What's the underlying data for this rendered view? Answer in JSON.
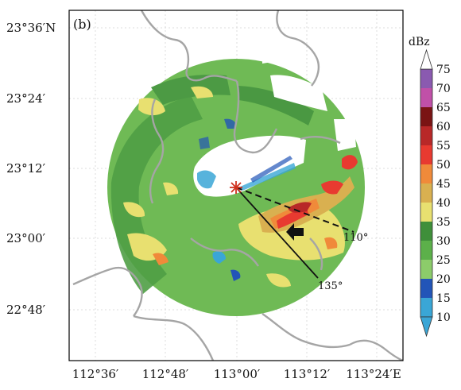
{
  "panel_label": "(b)",
  "axes": {
    "x_ticks": [
      "112°36′",
      "112°48′",
      "113°00′",
      "113°12′",
      "113°24′E"
    ],
    "y_ticks": [
      "23°36′N",
      "23°24′",
      "23°12′",
      "23°00′",
      "22°48′"
    ]
  },
  "colorbar": {
    "title": "dBz",
    "levels": [
      10,
      15,
      20,
      25,
      30,
      35,
      40,
      45,
      50,
      55,
      60,
      65,
      70,
      75
    ],
    "tick_labels": [
      "10",
      "15",
      "20",
      "25",
      "30",
      "35",
      "40",
      "45",
      "50",
      "55",
      "60",
      "65",
      "70",
      "75"
    ],
    "colors": [
      "#3aa6d6",
      "#2255b8",
      "#8ccc6a",
      "#5cb04a",
      "#3f8f3a",
      "#e8e070",
      "#d9b050",
      "#f08a3a",
      "#e83a30",
      "#b82828",
      "#7a1414",
      "#c050a8",
      "#8a5ab0"
    ]
  },
  "annotations": {
    "azimuth_1": "110°",
    "azimuth_2": "135°"
  },
  "colors": {
    "boundary": "#a5a5a5",
    "frame": "#000000",
    "grid": "#d4d4d4",
    "radar_site": "#d0301e"
  }
}
